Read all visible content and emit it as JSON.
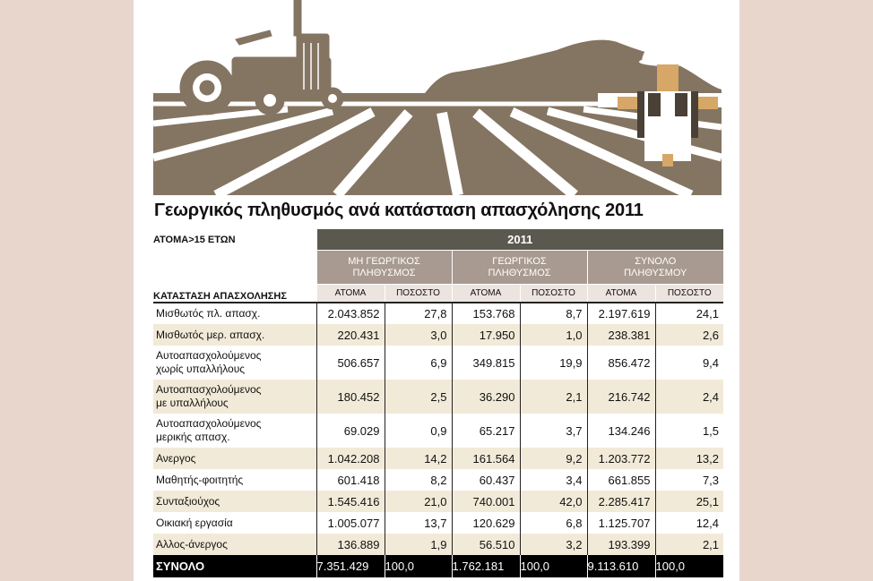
{
  "title": "Γεωργικός πληθυσμός ανά κατάσταση απασχόλησης 2011",
  "colors": {
    "field": "#847462",
    "header_dark": "#5a584f",
    "header_mid": "#a89a90",
    "row_shade": "#f2ead8"
  },
  "illustration": {
    "icons": [
      "tractor-icon",
      "farmer-icon",
      "field-furrows-icon"
    ]
  },
  "table": {
    "age_label": "ΑΤΟΜΑ>15 ΕΤΩΝ",
    "year": "2011",
    "status_header": "ΚΑΤΑΣΤΑΣΗ ΑΠΑΣΧΟΛΗΣΗΣ",
    "groups": [
      {
        "line1": "ΜΗ ΓΕΩΡΓΙΚΟΣ",
        "line2": "ΠΛΗΘΥΣΜΟΣ"
      },
      {
        "line1": "ΓΕΩΡΓΙΚΟΣ",
        "line2": "ΠΛΗΘΥΣΜΟΣ"
      },
      {
        "line1": "ΣΥΝΟΛΟ",
        "line2": "ΠΛΗΘΥΣΜΟΥ"
      }
    ],
    "sub": {
      "people": "ΑΤΟΜΑ",
      "percent": "ΠΟΣΟΣΤΟ"
    }
  },
  "chart_data": {
    "type": "table",
    "title": "Γεωργικός πληθυσμός ανά κατάσταση απασχόλησης 2011",
    "columns": [
      "ΜΗ ΓΕΩΡΓΙΚΟΣ ΠΛΗΘΥΣΜΟΣ ΑΤΟΜΑ",
      "ΜΗ ΓΕΩΡΓΙΚΟΣ ΠΛΗΘΥΣΜΟΣ ΠΟΣΟΣΤΟ",
      "ΓΕΩΡΓΙΚΟΣ ΠΛΗΘΥΣΜΟΣ ΑΤΟΜΑ",
      "ΓΕΩΡΓΙΚΟΣ ΠΛΗΘΥΣΜΟΣ ΠΟΣΟΣΤΟ",
      "ΣΥΝΟΛΟ ΠΛΗΘΥΣΜΟΥ ΑΤΟΜΑ",
      "ΣΥΝΟΛΟ ΠΛΗΘΥΣΜΟΥ ΠΟΣΟΣΤΟ"
    ],
    "rows": [
      {
        "label": [
          "Μισθωτός πλ. απασχ."
        ],
        "values": [
          "2.043.852",
          "27,8",
          "153.768",
          "8,7",
          "2.197.619",
          "24,1"
        ]
      },
      {
        "label": [
          "Μισθωτός μερ. απασχ."
        ],
        "values": [
          "220.431",
          "3,0",
          "17.950",
          "1,0",
          "238.381",
          "2,6"
        ]
      },
      {
        "label": [
          "Αυτοαπασχολούμενος",
          "χωρίς υπαλλήλους"
        ],
        "values": [
          "506.657",
          "6,9",
          "349.815",
          "19,9",
          "856.472",
          "9,4"
        ]
      },
      {
        "label": [
          "Αυτοαπασχολούμενος",
          "με υπαλλήλους"
        ],
        "values": [
          "180.452",
          "2,5",
          "36.290",
          "2,1",
          "216.742",
          "2,4"
        ]
      },
      {
        "label": [
          "Αυτοαπασχολούμενος",
          "μερικής απασχ."
        ],
        "values": [
          "69.029",
          "0,9",
          "65.217",
          "3,7",
          "134.246",
          "1,5"
        ]
      },
      {
        "label": [
          "Ανεργος"
        ],
        "values": [
          "1.042.208",
          "14,2",
          "161.564",
          "9,2",
          "1.203.772",
          "13,2"
        ]
      },
      {
        "label": [
          "Μαθητής-φοιτητής"
        ],
        "values": [
          "601.418",
          "8,2",
          "60.437",
          "3,4",
          "661.855",
          "7,3"
        ]
      },
      {
        "label": [
          "Συνταξιούχος"
        ],
        "values": [
          "1.545.416",
          "21,0",
          "740.001",
          "42,0",
          "2.285.417",
          "25,1"
        ]
      },
      {
        "label": [
          "Οικιακή εργασία"
        ],
        "values": [
          "1.005.077",
          "13,7",
          "120.629",
          "6,8",
          "1.125.707",
          "12,4"
        ]
      },
      {
        "label": [
          "Αλλος-άνεργος"
        ],
        "values": [
          "136.889",
          "1,9",
          "56.510",
          "3,2",
          "193.399",
          "2,1"
        ]
      }
    ],
    "total": {
      "label": "ΣΥΝΟΛΟ",
      "values": [
        "7.351.429",
        "100,0",
        "1.762.181",
        "100,0",
        "9.113.610",
        "100,0"
      ]
    }
  }
}
